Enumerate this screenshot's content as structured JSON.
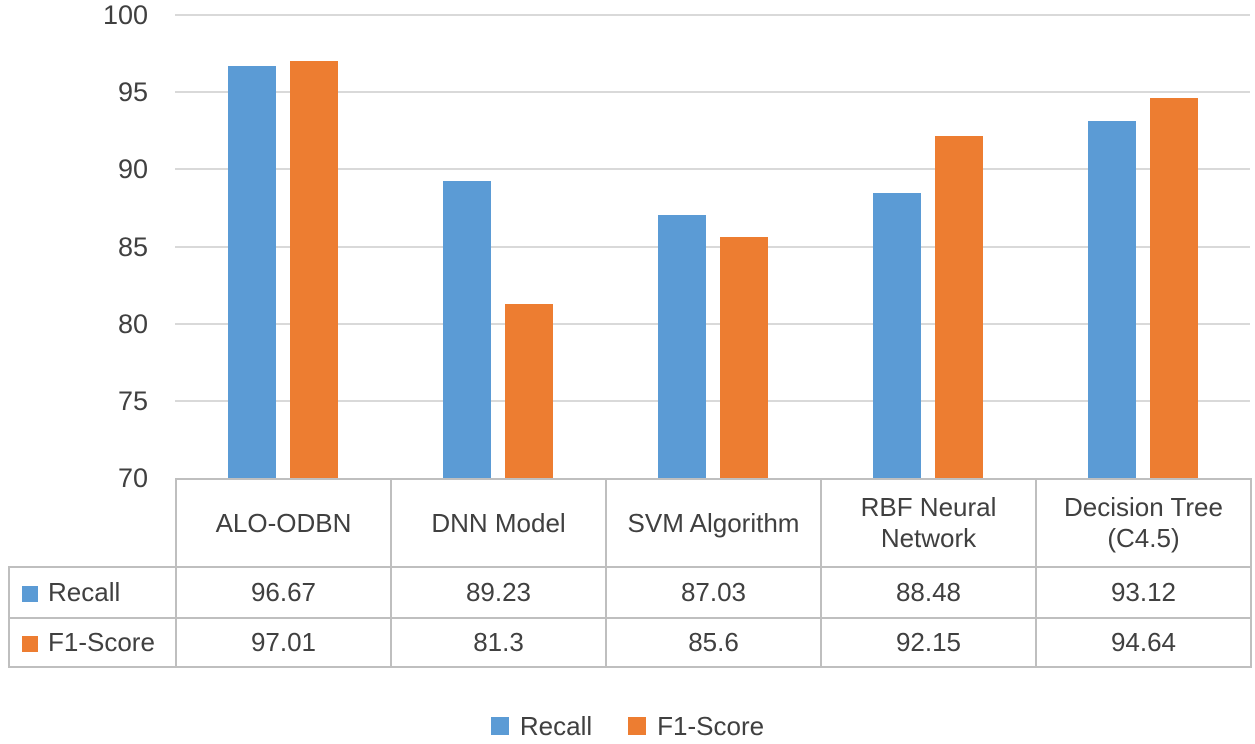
{
  "chart_data": {
    "type": "bar",
    "title": "",
    "xlabel": "",
    "ylabel": "",
    "categories": [
      "ALO-ODBN",
      "DNN Model",
      "SVM Algorithm",
      "RBF Neural Network",
      "Decision Tree (C4.5)"
    ],
    "series": [
      {
        "name": "Recall",
        "color": "#5B9BD5",
        "values": [
          96.67,
          89.23,
          87.03,
          88.48,
          93.12
        ]
      },
      {
        "name": "F1-Score",
        "color": "#ED7D31",
        "values": [
          97.01,
          81.3,
          85.6,
          92.15,
          94.64
        ]
      }
    ],
    "ylim": [
      70,
      100
    ],
    "yticks": [
      70,
      75,
      80,
      85,
      90,
      95,
      100
    ],
    "grid": true,
    "legend_position": "bottom",
    "data_table_shown": true
  },
  "table": {
    "column_headers": [
      "ALO-ODBN",
      "DNN Model",
      "SVM Algorithm",
      "RBF Neural Network",
      "Decision Tree (C4.5)"
    ],
    "row_headers": [
      "Recall",
      "F1-Score"
    ],
    "rows": [
      [
        "96.67",
        "89.23",
        "87.03",
        "88.48",
        "93.12"
      ],
      [
        "97.01",
        "81.3",
        "85.6",
        "92.15",
        "94.64"
      ]
    ]
  },
  "legend": {
    "items": [
      {
        "label": "Recall",
        "color": "#5B9BD5"
      },
      {
        "label": "F1-Score",
        "color": "#ED7D31"
      }
    ]
  },
  "colors": {
    "series_recall": "#5B9BD5",
    "series_f1": "#ED7D31",
    "gridline": "#D9D9D9",
    "table_border": "#BFBFBF",
    "text": "#404040"
  }
}
